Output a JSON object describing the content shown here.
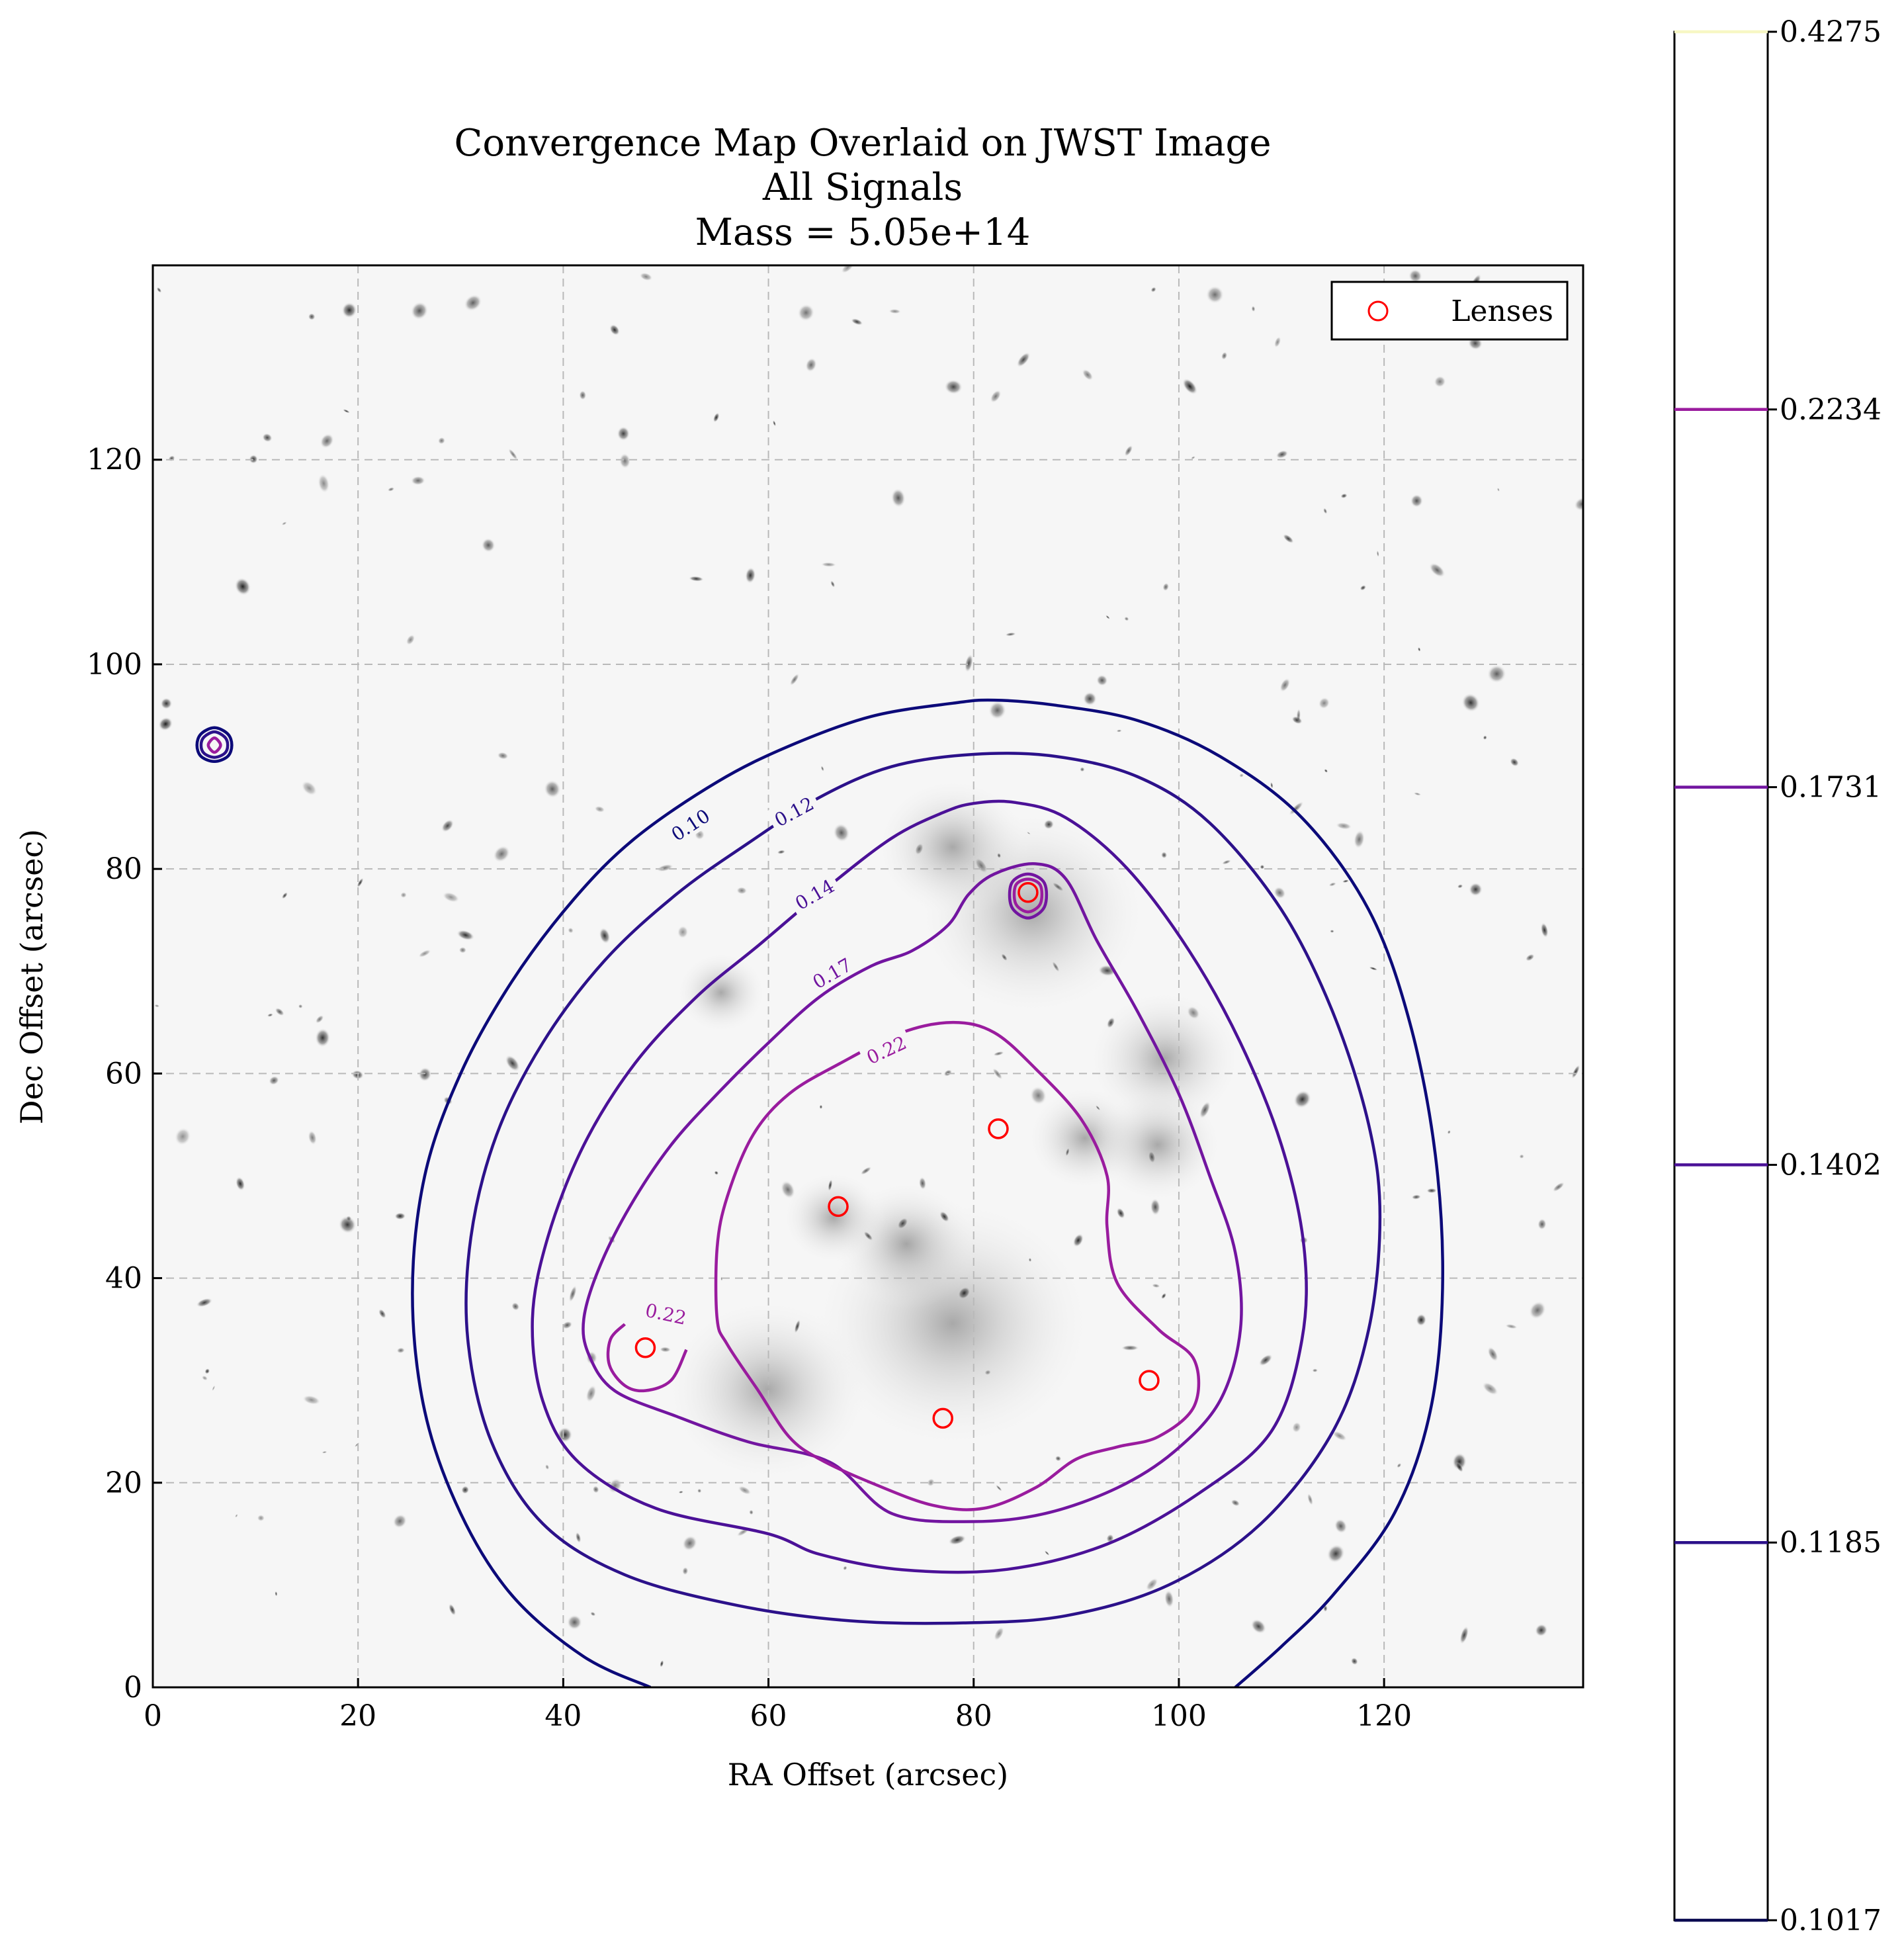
{
  "chart_data": {
    "type": "contour",
    "title": [
      "Convergence Map Overlaid on JWST Image",
      "All Signals",
      "Mass = 5.05e+14"
    ],
    "xlabel": "RA Offset (arcsec)",
    "ylabel": "Dec Offset (arcsec)",
    "xlim": [
      0,
      139.4
    ],
    "ylim": [
      0,
      139.0
    ],
    "xticks": [
      0,
      20,
      40,
      60,
      80,
      100,
      120
    ],
    "yticks": [
      0,
      20,
      40,
      60,
      80,
      100,
      120
    ],
    "xtick_labels": [
      "0",
      "20",
      "40",
      "60",
      "80",
      "100",
      "120"
    ],
    "ytick_labels": [
      "0",
      "20",
      "40",
      "60",
      "80",
      "100",
      "120"
    ],
    "grid": true,
    "background": "grayscale JWST image of galaxy field",
    "legend": {
      "placement": "top-right",
      "entries": [
        {
          "label": "Lenses",
          "marker": "open-circle",
          "color": "#ff0000"
        }
      ]
    },
    "lenses": [
      {
        "x": 48.0,
        "y": 33.2
      },
      {
        "x": 66.8,
        "y": 47.0
      },
      {
        "x": 77.0,
        "y": 26.3
      },
      {
        "x": 82.4,
        "y": 54.6
      },
      {
        "x": 85.3,
        "y": 77.7
      },
      {
        "x": 97.1,
        "y": 30.0
      }
    ],
    "contours": [
      {
        "level": 0.1017,
        "label": "0.10",
        "color": "#0c0a79",
        "points": [
          [
            48.5,
            0
          ],
          [
            42,
            3
          ],
          [
            35,
            9
          ],
          [
            30,
            17
          ],
          [
            26.5,
            27
          ],
          [
            25.3,
            38.5
          ],
          [
            26.5,
            50
          ],
          [
            30,
            60
          ],
          [
            35,
            69
          ],
          [
            41,
            77
          ],
          [
            47,
            83
          ],
          [
            55,
            88.5
          ],
          [
            62,
            92
          ],
          [
            70,
            94.9
          ],
          [
            78,
            96.2
          ],
          [
            82,
            96.5
          ],
          [
            88,
            96
          ],
          [
            96,
            94.5
          ],
          [
            104,
            91
          ],
          [
            112,
            85
          ],
          [
            118.5,
            76
          ],
          [
            122.5,
            65
          ],
          [
            125,
            52
          ],
          [
            125.7,
            39
          ],
          [
            124.5,
            27
          ],
          [
            121,
            17
          ],
          [
            115,
            9
          ],
          [
            110,
            4
          ],
          [
            105.5,
            0
          ]
        ],
        "label_at": [
          52.4,
          84.3
        ],
        "label_angle": -33
      },
      {
        "level": 0.1185,
        "label": "0.12",
        "color": "#2c118a",
        "points": [
          [
            57,
            8
          ],
          [
            46,
            11
          ],
          [
            38,
            16
          ],
          [
            33,
            24
          ],
          [
            30.7,
            34
          ],
          [
            31,
            44
          ],
          [
            33.5,
            54
          ],
          [
            38,
            63
          ],
          [
            44,
            71
          ],
          [
            51,
            77.5
          ],
          [
            58,
            82.5
          ],
          [
            65,
            87
          ],
          [
            72,
            90
          ],
          [
            80,
            91.2
          ],
          [
            88,
            91
          ],
          [
            96,
            89
          ],
          [
            103,
            84.5
          ],
          [
            110,
            76
          ],
          [
            115,
            66
          ],
          [
            118.5,
            55
          ],
          [
            119.6,
            46
          ],
          [
            118.5,
            35
          ],
          [
            115,
            25
          ],
          [
            108,
            16
          ],
          [
            99,
            10
          ],
          [
            89,
            7
          ],
          [
            79,
            6.3
          ],
          [
            68,
            6.5
          ],
          [
            57,
            8
          ]
        ],
        "label_at": [
          62.5,
          85.6
        ],
        "label_angle": -28
      },
      {
        "level": 0.1402,
        "label": "0.14",
        "color": "#4b1197",
        "points": [
          [
            60,
            15
          ],
          [
            49,
            17.5
          ],
          [
            41.5,
            22
          ],
          [
            38,
            28
          ],
          [
            37,
            36
          ],
          [
            38.5,
            44
          ],
          [
            42,
            53
          ],
          [
            47,
            61
          ],
          [
            53,
            67.5
          ],
          [
            59,
            72.5
          ],
          [
            65.5,
            78
          ],
          [
            72,
            83
          ],
          [
            77,
            85.5
          ],
          [
            80,
            86.4
          ],
          [
            84,
            86.5
          ],
          [
            89,
            85
          ],
          [
            95,
            80
          ],
          [
            101,
            72
          ],
          [
            106,
            63
          ],
          [
            110,
            53
          ],
          [
            112.2,
            43
          ],
          [
            112,
            34
          ],
          [
            109,
            25
          ],
          [
            102,
            19
          ],
          [
            93,
            14
          ],
          [
            83,
            11.5
          ],
          [
            73,
            11.5
          ],
          [
            65,
            13
          ],
          [
            60,
            15
          ]
        ],
        "label_at": [
          64.5,
          77.5
        ],
        "label_angle": -30
      },
      {
        "level": 0.1731,
        "label": "0.17",
        "color": "#7215a0",
        "points": [
          [
            66,
            22
          ],
          [
            58,
            24
          ],
          [
            51,
            26.5
          ],
          [
            45,
            29
          ],
          [
            42.5,
            32.5
          ],
          [
            42,
            36
          ],
          [
            43.5,
            41
          ],
          [
            46.5,
            47
          ],
          [
            50.5,
            53
          ],
          [
            55,
            58
          ],
          [
            60,
            63
          ],
          [
            65,
            67.5
          ],
          [
            70,
            70.5
          ],
          [
            74,
            72
          ],
          [
            77.5,
            74.5
          ],
          [
            79.5,
            77.5
          ],
          [
            82,
            79.5
          ],
          [
            86,
            80.5
          ],
          [
            89,
            79
          ],
          [
            92,
            73
          ],
          [
            96,
            66
          ],
          [
            100,
            58
          ],
          [
            103,
            50
          ],
          [
            105.5,
            42.5
          ],
          [
            106,
            35
          ],
          [
            104,
            28
          ],
          [
            99.5,
            23
          ],
          [
            94,
            19.5
          ],
          [
            87,
            17
          ],
          [
            80,
            16.2
          ],
          [
            72,
            17
          ],
          [
            66,
            22
          ]
        ],
        "label_at": [
          66.2,
          69.8
        ],
        "label_angle": -30
      },
      {
        "level": 0.2234,
        "label": "0.22",
        "color": "#9a1c9e",
        "points": [
          [
            55,
            36
          ],
          [
            55,
            43
          ],
          [
            56,
            48
          ],
          [
            58.5,
            54
          ],
          [
            62,
            58
          ],
          [
            67,
            61
          ],
          [
            73,
            64
          ],
          [
            78,
            65
          ],
          [
            82,
            64
          ],
          [
            86,
            60.5
          ],
          [
            90.5,
            55.5
          ],
          [
            93,
            50
          ],
          [
            93,
            45
          ],
          [
            94,
            39.5
          ],
          [
            98,
            35
          ],
          [
            101.5,
            32
          ],
          [
            101.5,
            27.5
          ],
          [
            98,
            24.5
          ],
          [
            94,
            23.5
          ],
          [
            90,
            22.3
          ],
          [
            86,
            19.5
          ],
          [
            81,
            17.5
          ],
          [
            76,
            17.8
          ],
          [
            70,
            20
          ],
          [
            65,
            22.3
          ],
          [
            62,
            24.5
          ],
          [
            59,
            29
          ],
          [
            56,
            33.5
          ],
          [
            55,
            36
          ]
        ],
        "label_at": [
          71.5,
          62.3
        ],
        "label_angle": -25
      },
      {
        "level": 0.2234,
        "label": "0.22",
        "color": "#9a1c9e",
        "points": [
          [
            52,
            33
          ],
          [
            50.5,
            30
          ],
          [
            48,
            29
          ],
          [
            46,
            29.5
          ],
          [
            44.5,
            31.5
          ],
          [
            44.6,
            34
          ],
          [
            46,
            35.5
          ]
        ],
        "label_at": [
          50,
          36.5
        ],
        "label_angle": 12
      },
      {
        "level": 0.1017,
        "label": "",
        "color": "#0c0a79",
        "points": [
          [
            6.0,
            93.8
          ],
          [
            7.3,
            93.2
          ],
          [
            7.7,
            92.1
          ],
          [
            7.3,
            91.0
          ],
          [
            6.0,
            90.5
          ],
          [
            4.7,
            91.0
          ],
          [
            4.3,
            92.1
          ],
          [
            4.7,
            93.2
          ],
          [
            6.0,
            93.8
          ]
        ]
      },
      {
        "level": 0.1185,
        "label": "",
        "color": "#2c118a",
        "points": [
          [
            6.0,
            93.4
          ],
          [
            7.0,
            92.9
          ],
          [
            7.3,
            92.1
          ],
          [
            7.0,
            91.3
          ],
          [
            6.0,
            90.9
          ],
          [
            5.0,
            91.3
          ],
          [
            4.7,
            92.1
          ],
          [
            5.0,
            92.9
          ],
          [
            6.0,
            93.4
          ]
        ]
      },
      {
        "level": 0.1402,
        "label": "",
        "color": "#9a1c9e",
        "points": [
          [
            6.0,
            92.8
          ],
          [
            6.6,
            92.1
          ],
          [
            6.0,
            91.4
          ],
          [
            5.4,
            92.1
          ],
          [
            6.0,
            92.8
          ]
        ]
      },
      {
        "level": 0.1731,
        "label": "",
        "color": "#7215a0",
        "points": [
          [
            85.3,
            79.5
          ],
          [
            86.9,
            78.6
          ],
          [
            86.9,
            76.3
          ],
          [
            85.3,
            75.2
          ],
          [
            83.7,
            76.3
          ],
          [
            83.7,
            78.6
          ],
          [
            85.3,
            79.5
          ]
        ]
      },
      {
        "level": 0.2234,
        "label": "",
        "color": "#9a1c9e",
        "points": [
          [
            85.3,
            79.0
          ],
          [
            86.5,
            78.4
          ],
          [
            86.5,
            76.6
          ],
          [
            85.3,
            75.8
          ],
          [
            84.1,
            76.6
          ],
          [
            84.1,
            78.4
          ],
          [
            85.3,
            79.0
          ]
        ]
      }
    ],
    "colorbar": {
      "min": 0.1017,
      "max": 0.4275,
      "ticks": [
        0.1017,
        0.1185,
        0.1402,
        0.1731,
        0.2234,
        0.4275
      ],
      "tick_labels": [
        "0.1017",
        "0.1185",
        "0.1402",
        "0.1731",
        "0.2234",
        "0.4275"
      ],
      "line_colors": [
        "#0a0a50",
        "#2c118a",
        "#4b1197",
        "#7215a0",
        "#9a1c9e",
        "#f7f7c4"
      ]
    }
  }
}
